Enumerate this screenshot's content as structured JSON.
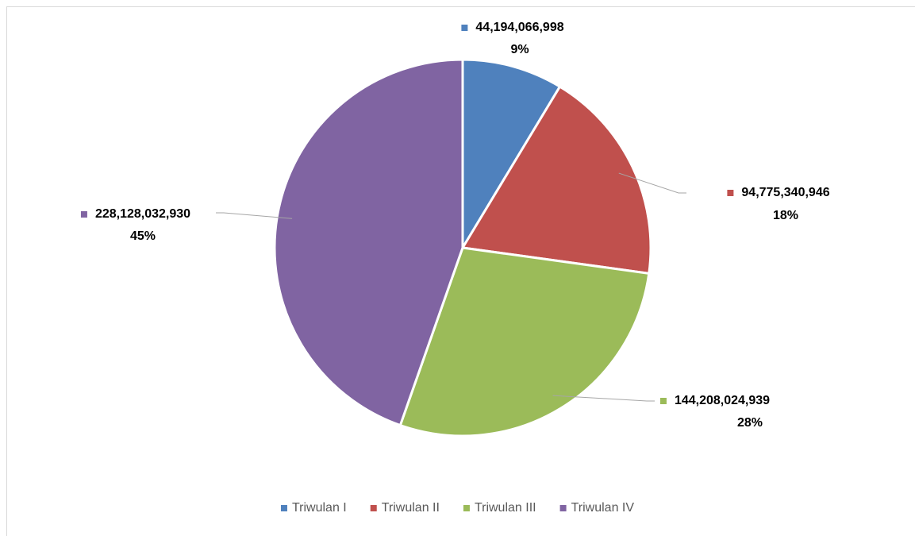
{
  "chart_data": {
    "type": "pie",
    "categories": [
      "Triwulan I",
      "Triwulan II",
      "Triwulan III",
      "Triwulan IV"
    ],
    "values": [
      44194066998,
      94775340946,
      144208024939,
      228128032930
    ],
    "value_labels": [
      "44,194,066,998",
      "94,775,340,946",
      "144,208,024,939",
      "228,128,032,930"
    ],
    "percent_labels": [
      "9%",
      "18%",
      "28%",
      "45%"
    ],
    "colors": [
      "#4f81bd",
      "#c0504d",
      "#9bbb59",
      "#8064a2"
    ],
    "legend": "bottom"
  }
}
